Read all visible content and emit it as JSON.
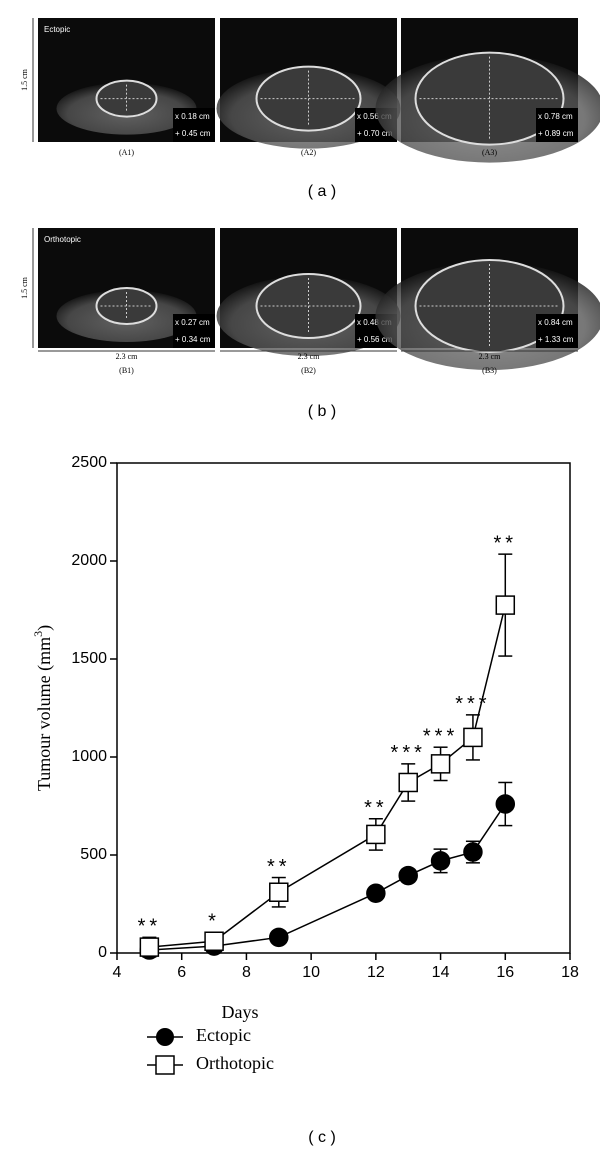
{
  "panels": [
    {
      "label": "( a )",
      "height_label": "1.5 cm",
      "images": [
        {
          "caption": "(A1)",
          "tag": "Ectopic",
          "x_measure": "x 0.18 cm",
          "plus_measure": "+ 0.45 cm"
        },
        {
          "caption": "(A2)",
          "x_measure": "x 0.56 cm",
          "plus_measure": "+ 0.70 cm"
        },
        {
          "caption": "(A3)",
          "x_measure": "x 0.78 cm",
          "plus_measure": "+ 0.89 cm"
        }
      ]
    },
    {
      "label": "( b )",
      "height_label": "1.5 cm",
      "images": [
        {
          "caption": "(B1)",
          "tag": "Orthotopic",
          "x_measure": "x 0.27 cm",
          "plus_measure": "+ 0.34 cm",
          "width_label": "2.3 cm"
        },
        {
          "caption": "(B2)",
          "x_measure": "x 0.48 cm",
          "plus_measure": "+ 0.56 cm",
          "width_label": "2.3 cm"
        },
        {
          "caption": "(B3)",
          "x_measure": "x 0.84 cm",
          "plus_measure": "+ 1.33 cm",
          "width_label": "2.3 cm"
        }
      ]
    }
  ],
  "chart_label": "( c )",
  "chart_data": {
    "type": "line",
    "xlabel": "Days",
    "ylabel": {
      "text": "Tumour volume (mm",
      "superscript": "3",
      "suffix": ")"
    },
    "xlim": [
      4,
      18
    ],
    "xticks": [
      4,
      6,
      8,
      10,
      12,
      14,
      16,
      18
    ],
    "ylim": [
      0,
      2500
    ],
    "yticks": [
      0,
      500,
      1000,
      1500,
      2000,
      2500
    ],
    "x": [
      5,
      7,
      9,
      12,
      13,
      14,
      15,
      16
    ],
    "series": [
      {
        "name": "Ectopic",
        "color": "#000000",
        "marker": "circle",
        "values": [
          15,
          35,
          80,
          305,
          395,
          470,
          515,
          760
        ],
        "errors": [
          15,
          20,
          20,
          25,
          30,
          60,
          55,
          110
        ]
      },
      {
        "name": "Orthotopic",
        "color": "#000000",
        "marker": "square",
        "values": [
          30,
          60,
          310,
          605,
          870,
          965,
          1100,
          1775
        ],
        "errors": [
          50,
          30,
          75,
          80,
          95,
          85,
          115,
          260
        ],
        "annotations": [
          "**",
          "*",
          "**",
          "**",
          "***",
          "***",
          "***",
          "**"
        ]
      }
    ]
  }
}
